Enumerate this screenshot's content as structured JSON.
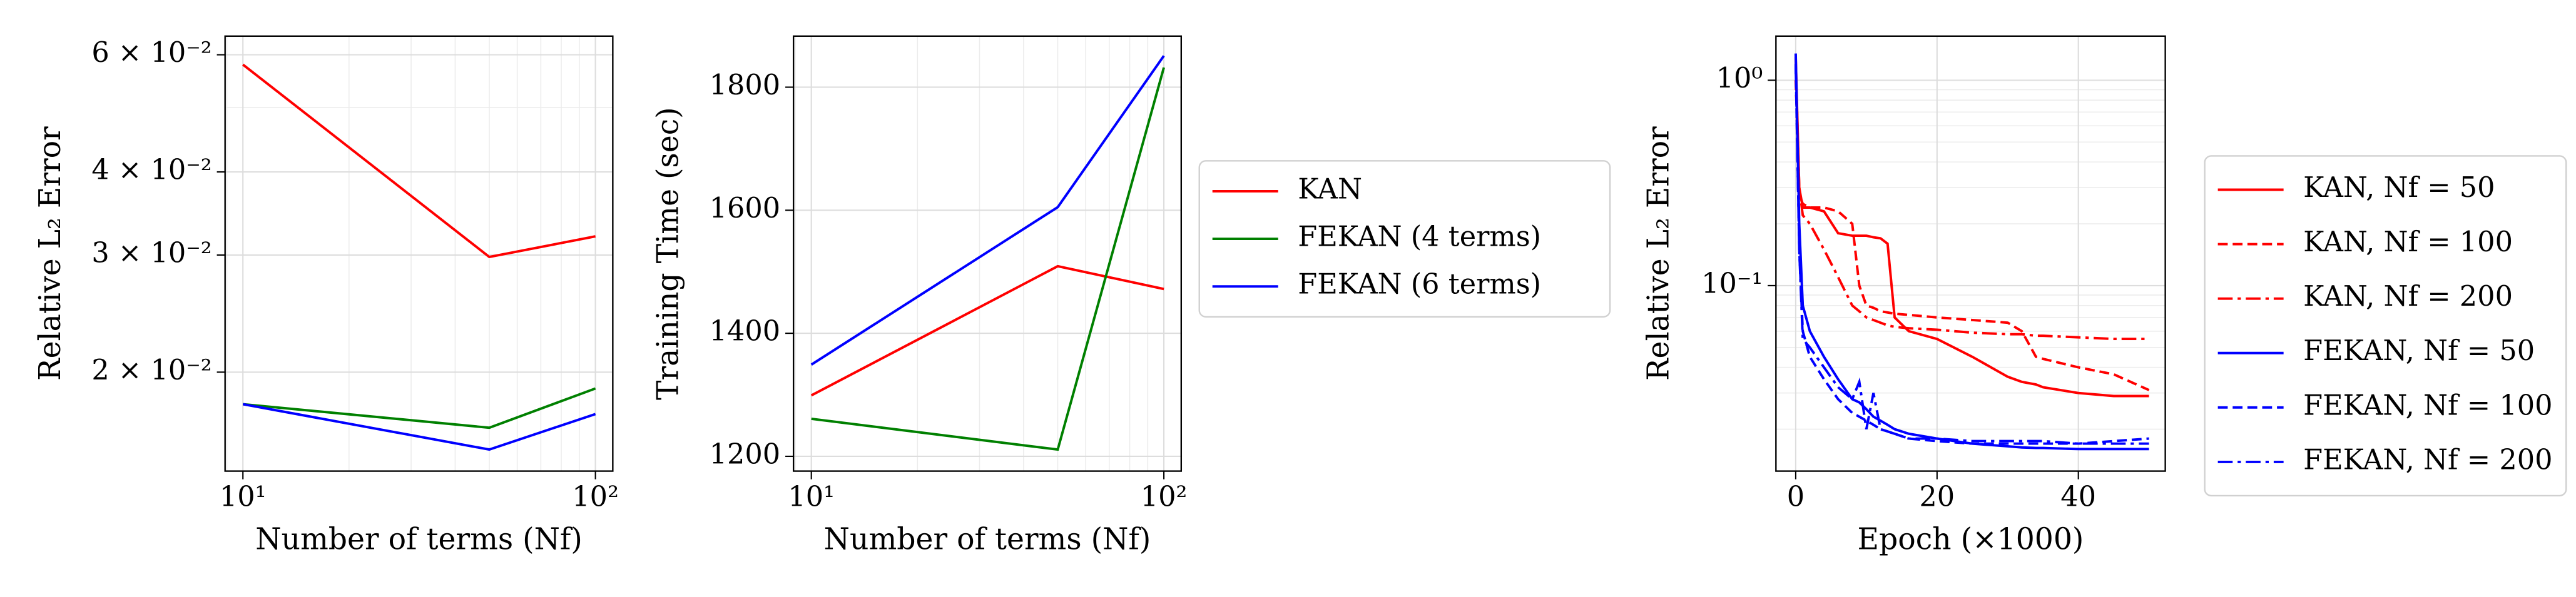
{
  "chart_data": [
    {
      "type": "line",
      "xlabel": "Number of terms (Nf)",
      "ylabel": "Relative L₂ Error",
      "x": [
        10,
        50,
        100
      ],
      "xscale": "log",
      "yscale": "log",
      "grid": true,
      "xlim": [
        8.9,
        112
      ],
      "ylim": [
        0.0142,
        0.064
      ],
      "xticks": [
        {
          "value": 10,
          "label": "10¹"
        },
        {
          "value": 100,
          "label": "10²"
        }
      ],
      "yticks": [
        {
          "value": 0.06,
          "label": "6 × 10⁻²"
        },
        {
          "value": 0.04,
          "label": "4 × 10⁻²"
        },
        {
          "value": 0.03,
          "label": "3 × 10⁻²"
        },
        {
          "value": 0.02,
          "label": "2 × 10⁻²"
        }
      ],
      "series": [
        {
          "color": "#ff0000",
          "values": [
            0.058,
            0.0298,
            0.032
          ]
        },
        {
          "color": "#008000",
          "values": [
            0.0179,
            0.0165,
            0.0189
          ]
        },
        {
          "color": "#0000ff",
          "values": [
            0.0179,
            0.0153,
            0.0173
          ]
        }
      ]
    },
    {
      "type": "line",
      "xlabel": "Number of terms (Nf)",
      "ylabel": "Training Time (sec)",
      "x": [
        10,
        50,
        100
      ],
      "xscale": "log",
      "yscale": "linear",
      "grid": true,
      "legend": "outside right",
      "xlim": [
        8.9,
        112
      ],
      "ylim": [
        1176,
        1883
      ],
      "xticks": [
        {
          "value": 10,
          "label": "10¹"
        },
        {
          "value": 100,
          "label": "10²"
        }
      ],
      "yticks": [
        1200,
        1400,
        1600,
        1800
      ],
      "series": [
        {
          "name": "KAN",
          "color": "#ff0000",
          "values": [
            1299,
            1509,
            1472
          ]
        },
        {
          "name": "FEKAN (4 terms)",
          "color": "#008000",
          "values": [
            1261,
            1211,
            1832
          ]
        },
        {
          "name": "FEKAN (6 terms)",
          "color": "#0000ff",
          "values": [
            1349,
            1605,
            1851
          ]
        }
      ]
    },
    {
      "type": "line",
      "xlabel": "Epoch (×1000)",
      "ylabel": "Relative L₂ Error",
      "x": [
        0,
        0.5,
        1,
        2,
        4,
        6,
        8,
        9,
        10,
        11,
        12,
        13,
        14,
        16,
        20,
        25,
        30,
        32,
        34,
        35,
        40,
        45,
        50
      ],
      "xscale": "linear",
      "yscale": "log",
      "grid": true,
      "legend": "outside right",
      "xlim": [
        -2.8,
        52.3
      ],
      "ylim": [
        0.0125,
        1.64
      ],
      "xticks": [
        0,
        20,
        40
      ],
      "yticks": [
        {
          "value": 1,
          "label": "10⁰"
        },
        {
          "value": 0.1,
          "label": "10⁻¹"
        }
      ],
      "series": [
        {
          "name": "KAN, Nf = 50",
          "color": "#ff0000",
          "linestyle": "solid",
          "values": [
            1.3,
            0.3,
            0.24,
            0.24,
            0.23,
            0.18,
            0.175,
            0.175,
            0.175,
            0.172,
            0.17,
            0.16,
            0.07,
            0.06,
            0.055,
            0.045,
            0.036,
            0.034,
            0.033,
            0.032,
            0.03,
            0.029,
            0.029
          ]
        },
        {
          "name": "KAN, Nf = 100",
          "color": "#ff0000",
          "linestyle": "dashed",
          "values": [
            1.0,
            0.28,
            0.25,
            0.24,
            0.24,
            0.23,
            0.2,
            0.1,
            0.08,
            0.078,
            0.075,
            0.074,
            0.073,
            0.072,
            0.07,
            0.068,
            0.066,
            0.06,
            0.045,
            0.044,
            0.04,
            0.037,
            0.031
          ]
        },
        {
          "name": "KAN, Nf = 200",
          "color": "#ff0000",
          "linestyle": "dashdot",
          "values": [
            1.2,
            0.3,
            0.22,
            0.2,
            0.15,
            0.11,
            0.08,
            0.075,
            0.07,
            0.068,
            0.066,
            0.064,
            0.063,
            0.062,
            0.061,
            0.059,
            0.058,
            0.058,
            0.057,
            0.057,
            0.056,
            0.055,
            0.055
          ]
        },
        {
          "name": "FEKAN, Nf = 50",
          "color": "#0000ff",
          "linestyle": "solid",
          "values": [
            1.35,
            0.2,
            0.08,
            0.06,
            0.045,
            0.035,
            0.028,
            0.027,
            0.025,
            0.023,
            0.022,
            0.021,
            0.02,
            0.019,
            0.018,
            0.017,
            0.0165,
            0.0163,
            0.0162,
            0.0162,
            0.016,
            0.016,
            0.016
          ]
        },
        {
          "name": "FEKAN, Nf = 100",
          "color": "#0000ff",
          "linestyle": "dashed",
          "values": [
            1.2,
            0.15,
            0.06,
            0.045,
            0.035,
            0.028,
            0.024,
            0.023,
            0.022,
            0.021,
            0.02,
            0.0195,
            0.019,
            0.018,
            0.0175,
            0.017,
            0.017,
            0.017,
            0.017,
            0.017,
            0.017,
            0.0175,
            0.018
          ]
        },
        {
          "name": "FEKAN, Nf = 200",
          "color": "#0000ff",
          "linestyle": "dashdot",
          "values": [
            1.2,
            0.15,
            0.055,
            0.05,
            0.04,
            0.032,
            0.028,
            0.034,
            0.02,
            0.03,
            0.02,
            0.0195,
            0.019,
            0.018,
            0.018,
            0.0175,
            0.0175,
            0.0175,
            0.0175,
            0.0175,
            0.017,
            0.017,
            0.017
          ]
        }
      ]
    }
  ]
}
